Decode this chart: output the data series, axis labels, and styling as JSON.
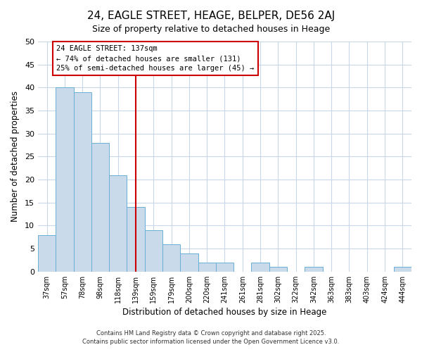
{
  "title": "24, EAGLE STREET, HEAGE, BELPER, DE56 2AJ",
  "subtitle": "Size of property relative to detached houses in Heage",
  "xlabel": "Distribution of detached houses by size in Heage",
  "ylabel": "Number of detached properties",
  "bar_labels": [
    "37sqm",
    "57sqm",
    "78sqm",
    "98sqm",
    "118sqm",
    "139sqm",
    "159sqm",
    "179sqm",
    "200sqm",
    "220sqm",
    "241sqm",
    "261sqm",
    "281sqm",
    "302sqm",
    "322sqm",
    "342sqm",
    "363sqm",
    "383sqm",
    "403sqm",
    "424sqm",
    "444sqm"
  ],
  "bar_values": [
    8,
    40,
    39,
    28,
    21,
    14,
    9,
    6,
    4,
    2,
    2,
    0,
    2,
    1,
    0,
    1,
    0,
    0,
    0,
    0,
    1
  ],
  "bar_color": "#c9daea",
  "bar_edge_color": "#6aafd6",
  "vline_x_index": 5,
  "vline_color": "#cc0000",
  "annotation_title": "24 EAGLE STREET: 137sqm",
  "annotation_line1": "← 74% of detached houses are smaller (131)",
  "annotation_line2": "25% of semi-detached houses are larger (45) →",
  "annotation_box_color": "#cc0000",
  "ylim": [
    0,
    50
  ],
  "yticks": [
    0,
    5,
    10,
    15,
    20,
    25,
    30,
    35,
    40,
    45,
    50
  ],
  "footer1": "Contains HM Land Registry data © Crown copyright and database right 2025.",
  "footer2": "Contains public sector information licensed under the Open Government Licence v3.0.",
  "bg_color": "#ffffff",
  "plot_bg_color": "#ffffff",
  "grid_color": "#c8d8e8",
  "title_fontsize": 11,
  "subtitle_fontsize": 9
}
